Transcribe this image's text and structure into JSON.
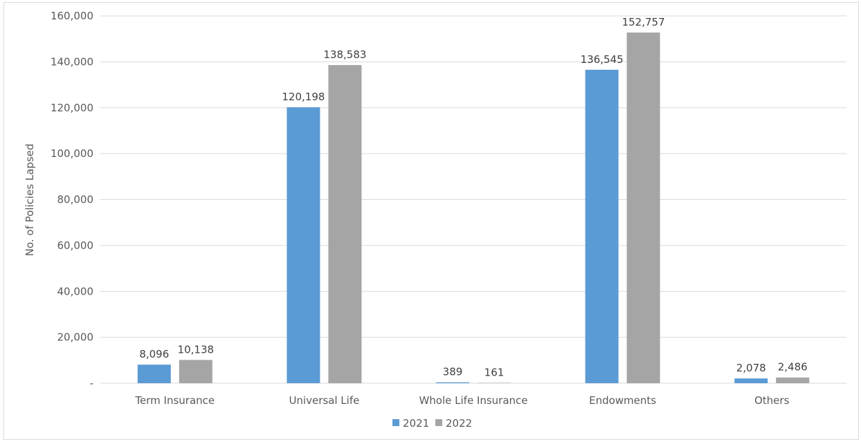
{
  "chart_data": {
    "type": "bar",
    "title": "",
    "xlabel": "",
    "ylabel": "No. of Policies Lapsed",
    "categories": [
      "Term Insurance",
      "Universal Life",
      "Whole Life Insurance",
      "Endowments",
      "Others"
    ],
    "series": [
      {
        "name": "2021",
        "color": "#5b9bd5",
        "values": [
          8096,
          120198,
          389,
          136545,
          2078
        ],
        "labels": [
          "8,096",
          "120,198",
          "389",
          "136,545",
          "2,078"
        ]
      },
      {
        "name": "2022",
        "color": "#a5a5a5",
        "values": [
          10138,
          138583,
          161,
          152757,
          2486
        ],
        "labels": [
          "10,138",
          "138,583",
          "161",
          "152,757",
          "2,486"
        ]
      }
    ],
    "ylim": [
      0,
      160000
    ],
    "yticks": [
      0,
      20000,
      40000,
      60000,
      80000,
      100000,
      120000,
      140000,
      160000
    ],
    "ytick_labels": [
      "-",
      "20,000",
      "40,000",
      "60,000",
      "80,000",
      "100,000",
      "120,000",
      "140,000",
      "160,000"
    ],
    "grid": true,
    "legend_position": "bottom-center"
  }
}
